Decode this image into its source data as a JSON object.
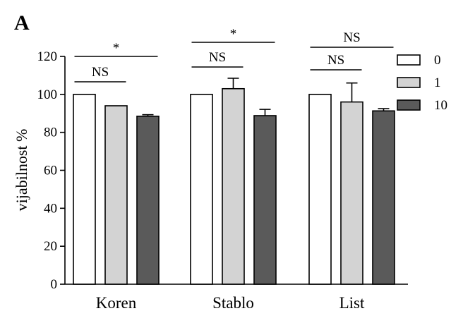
{
  "panel_label": "A",
  "colors": {
    "0": "#ffffff",
    "1": "#d3d3d3",
    "10": "#5a5a5a",
    "stroke": "#000000"
  },
  "chart_data": {
    "type": "bar",
    "title": "",
    "xlabel": "",
    "ylabel": "vijabilnost %",
    "ylim": [
      0,
      120
    ],
    "yticks": [
      0,
      20,
      40,
      60,
      80,
      100,
      120
    ],
    "categories": [
      "Koren",
      "Stablo",
      "List"
    ],
    "series": [
      {
        "name": "0",
        "values": [
          100,
          100,
          100
        ],
        "errors": [
          0,
          0,
          0
        ]
      },
      {
        "name": "1",
        "values": [
          94,
          103,
          96
        ],
        "errors": [
          0,
          5.5,
          10
        ]
      },
      {
        "name": "10",
        "values": [
          88.5,
          88.8,
          91.3
        ],
        "errors": [
          0.8,
          3.3,
          1.2
        ]
      }
    ],
    "legend": {
      "position": "right",
      "entries": [
        "0",
        "1",
        "10"
      ]
    },
    "significance": [
      {
        "category": 0,
        "from": 0,
        "to": 1,
        "label": "NS"
      },
      {
        "category": 0,
        "from": 0,
        "to": 2,
        "label": "*"
      },
      {
        "category": 1,
        "from": 0,
        "to": 1,
        "label": "NS"
      },
      {
        "category": 1,
        "from": 0,
        "to": 2,
        "label": "*"
      },
      {
        "category": 2,
        "from": 0,
        "to": 1,
        "label": "NS"
      },
      {
        "category": 2,
        "from": 0,
        "to": 2,
        "label": "NS"
      }
    ]
  }
}
